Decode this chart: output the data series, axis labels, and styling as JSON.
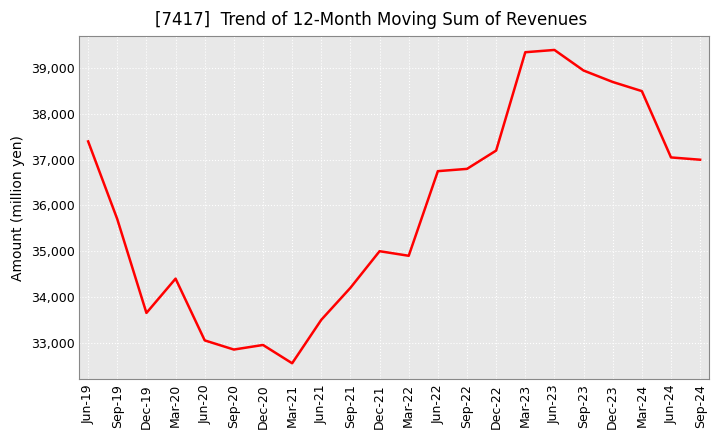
{
  "title": "[7417]  Trend of 12-Month Moving Sum of Revenues",
  "ylabel": "Amount (million yen)",
  "background_color": "#ffffff",
  "plot_bg_color": "#e8e8e8",
  "grid_color": "#ffffff",
  "line_color": "#ff0000",
  "line_width": 1.8,
  "x_labels": [
    "Jun-19",
    "Sep-19",
    "Dec-19",
    "Mar-20",
    "Jun-20",
    "Sep-20",
    "Dec-20",
    "Mar-21",
    "Jun-21",
    "Sep-21",
    "Dec-21",
    "Mar-22",
    "Jun-22",
    "Sep-22",
    "Dec-22",
    "Mar-23",
    "Jun-23",
    "Sep-23",
    "Dec-23",
    "Mar-24",
    "Jun-24",
    "Sep-24"
  ],
  "y_values": [
    37400,
    35700,
    33650,
    34400,
    33050,
    32850,
    32950,
    32550,
    33500,
    34200,
    35000,
    34900,
    36750,
    36800,
    37200,
    39350,
    39400,
    38950,
    38700,
    38500,
    37050,
    37000
  ],
  "ylim": [
    32200,
    39700
  ],
  "yticks": [
    33000,
    34000,
    35000,
    36000,
    37000,
    38000,
    39000
  ],
  "title_fontsize": 12,
  "ylabel_fontsize": 10,
  "tick_fontsize": 9
}
